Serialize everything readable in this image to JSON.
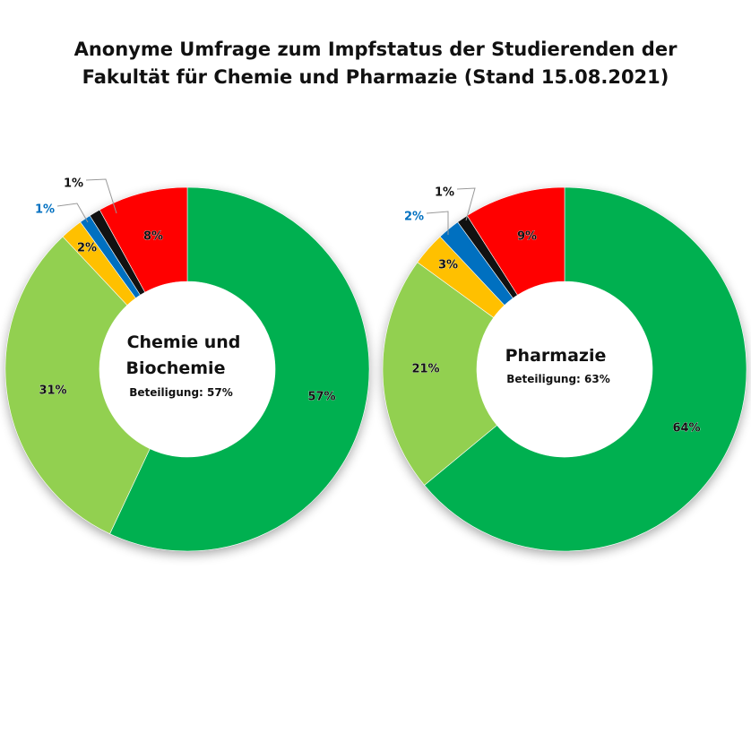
{
  "title": {
    "line1": "Anonyme Umfrage zum Impfstatus der Studierenden der",
    "line2": "Fakultät für Chemie und Pharmazie (Stand 15.08.2021)"
  },
  "colors": {
    "dark_green": "#00b050",
    "light_green": "#92d050",
    "orange": "#ffc000",
    "blue": "#0070c0",
    "black": "#111111",
    "red": "#ff0000"
  },
  "chart_data": [
    {
      "type": "pie",
      "donut": true,
      "center_title": [
        "Chemie und",
        "Biochemie"
      ],
      "center_subtitle": "Beteiligung: 57%",
      "slices": [
        {
          "label": "57%",
          "value": 57,
          "color": "#00b050"
        },
        {
          "label": "31%",
          "value": 31,
          "color": "#92d050"
        },
        {
          "label": "2%",
          "value": 2,
          "color": "#ffc000"
        },
        {
          "label": "1%",
          "value": 1,
          "color": "#0070c0"
        },
        {
          "label": "1%",
          "value": 1,
          "color": "#111111"
        },
        {
          "label": "8%",
          "value": 8,
          "color": "#ff0000"
        }
      ]
    },
    {
      "type": "pie",
      "donut": true,
      "center_title": [
        "Pharmazie"
      ],
      "center_subtitle": "Beteiligung: 63%",
      "slices": [
        {
          "label": "64%",
          "value": 64,
          "color": "#00b050"
        },
        {
          "label": "21%",
          "value": 21,
          "color": "#92d050"
        },
        {
          "label": "3%",
          "value": 3,
          "color": "#ffc000"
        },
        {
          "label": "2%",
          "value": 2,
          "color": "#0070c0"
        },
        {
          "label": "1%",
          "value": 1,
          "color": "#111111"
        },
        {
          "label": "9%",
          "value": 9,
          "color": "#ff0000"
        }
      ]
    }
  ]
}
